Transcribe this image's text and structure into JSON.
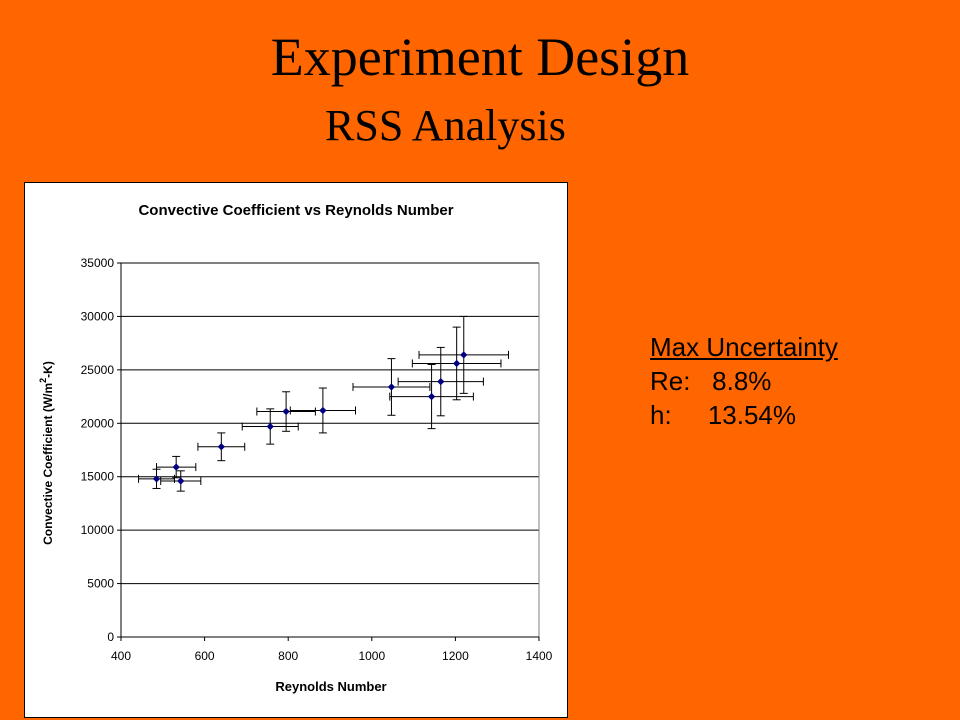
{
  "slide": {
    "title": "Experiment Design",
    "subtitle": "RSS Analysis"
  },
  "uncertainty": {
    "heading": "Max Uncertainty",
    "re_label": "Re:",
    "re_value": "8.8%",
    "h_label": "h:",
    "h_value": "13.54%"
  },
  "colors": {
    "background": "#FF6600",
    "marker": "#000080",
    "axis": "#000000"
  },
  "chart_data": {
    "type": "scatter",
    "title": "Convective Coefficient vs Reynolds Number",
    "xlabel": "Reynolds Number",
    "ylabel_main": "Convective Coefficient (W/m",
    "ylabel_sup": "2",
    "ylabel_end": "-K)",
    "xlim": [
      400,
      1400
    ],
    "ylim": [
      0,
      35000
    ],
    "xticks": [
      400,
      600,
      800,
      1000,
      1200,
      1400
    ],
    "yticks": [
      0,
      5000,
      10000,
      15000,
      20000,
      25000,
      30000,
      35000
    ],
    "grid": "horizontal",
    "legend": "none",
    "points": [
      {
        "x": 485,
        "y": 14800,
        "xerr": 43,
        "yerr": 900
      },
      {
        "x": 532,
        "y": 15900,
        "xerr": 47,
        "yerr": 1000
      },
      {
        "x": 543,
        "y": 14600,
        "xerr": 48,
        "yerr": 950
      },
      {
        "x": 640,
        "y": 17800,
        "xerr": 56,
        "yerr": 1300
      },
      {
        "x": 757,
        "y": 19700,
        "xerr": 67,
        "yerr": 1650
      },
      {
        "x": 795,
        "y": 21100,
        "xerr": 70,
        "yerr": 1850
      },
      {
        "x": 883,
        "y": 21200,
        "xerr": 78,
        "yerr": 2100
      },
      {
        "x": 1047,
        "y": 23400,
        "xerr": 92,
        "yerr": 2650
      },
      {
        "x": 1143,
        "y": 22500,
        "xerr": 100,
        "yerr": 3000
      },
      {
        "x": 1165,
        "y": 23900,
        "xerr": 102,
        "yerr": 3200
      },
      {
        "x": 1203,
        "y": 25600,
        "xerr": 106,
        "yerr": 3400
      },
      {
        "x": 1220,
        "y": 26400,
        "xerr": 107,
        "yerr": 3600
      }
    ]
  }
}
